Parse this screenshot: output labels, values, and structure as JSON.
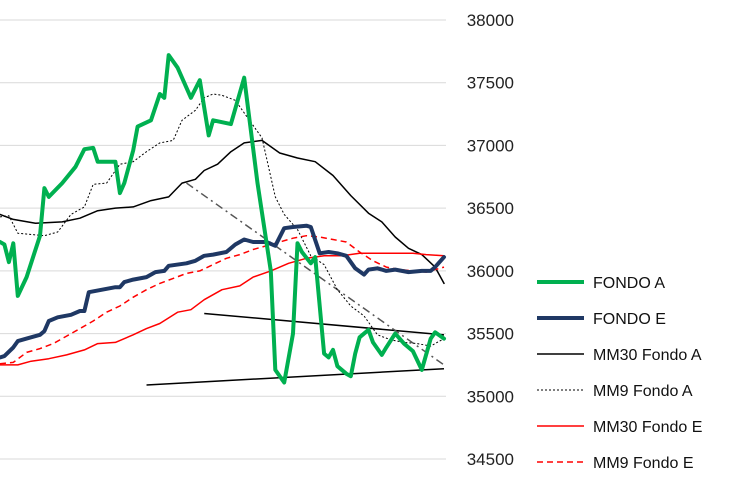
{
  "chart_data": {
    "type": "line",
    "ylim": [
      34500,
      38000
    ],
    "y_ticks": [
      "38000",
      "37500",
      "37000",
      "36500",
      "36000",
      "35500",
      "35000",
      "34500"
    ],
    "grid": true,
    "legend_position": "right",
    "x_count": 100,
    "series": [
      {
        "name": "FONDO A",
        "color": "#00b050",
        "style": "solid",
        "width": 4,
        "points": [
          [
            0,
            36230
          ],
          [
            1,
            36210
          ],
          [
            2,
            36070
          ],
          [
            3,
            36220
          ],
          [
            4,
            35800
          ],
          [
            6,
            35950
          ],
          [
            9,
            36280
          ],
          [
            10,
            36660
          ],
          [
            11,
            36590
          ],
          [
            14,
            36700
          ],
          [
            17,
            36830
          ],
          [
            19,
            36970
          ],
          [
            21,
            36980
          ],
          [
            22,
            36870
          ],
          [
            26,
            36870
          ],
          [
            27,
            36620
          ],
          [
            28,
            36700
          ],
          [
            30,
            36960
          ],
          [
            31,
            37150
          ],
          [
            34,
            37200
          ],
          [
            36,
            37410
          ],
          [
            37,
            37380
          ],
          [
            38,
            37720
          ],
          [
            40,
            37620
          ],
          [
            43,
            37380
          ],
          [
            45,
            37520
          ],
          [
            47,
            37080
          ],
          [
            48,
            37200
          ],
          [
            52,
            37170
          ],
          [
            55,
            37540
          ],
          [
            58,
            36700
          ],
          [
            61,
            36000
          ],
          [
            62,
            35210
          ],
          [
            64,
            35110
          ],
          [
            66,
            35500
          ],
          [
            67,
            36220
          ],
          [
            68,
            36150
          ],
          [
            70,
            36060
          ],
          [
            71,
            36110
          ],
          [
            73,
            35340
          ],
          [
            74,
            35310
          ],
          [
            75,
            35370
          ],
          [
            76,
            35240
          ],
          [
            78,
            35180
          ],
          [
            79,
            35160
          ],
          [
            80,
            35340
          ],
          [
            81,
            35470
          ],
          [
            83,
            35530
          ],
          [
            84,
            35430
          ],
          [
            86,
            35330
          ],
          [
            87,
            35390
          ],
          [
            89,
            35500
          ],
          [
            91,
            35420
          ],
          [
            93,
            35360
          ],
          [
            95,
            35210
          ],
          [
            97,
            35460
          ],
          [
            98,
            35510
          ],
          [
            100,
            35460
          ]
        ]
      },
      {
        "name": "FONDO E",
        "color": "#1f3864",
        "style": "solid",
        "width": 4,
        "points": [
          [
            0,
            35310
          ],
          [
            1,
            35320
          ],
          [
            3,
            35390
          ],
          [
            4,
            35440
          ],
          [
            6,
            35460
          ],
          [
            8,
            35480
          ],
          [
            9,
            35490
          ],
          [
            10,
            35520
          ],
          [
            11,
            35600
          ],
          [
            13,
            35630
          ],
          [
            16,
            35650
          ],
          [
            18,
            35680
          ],
          [
            19,
            35680
          ],
          [
            20,
            35830
          ],
          [
            23,
            35850
          ],
          [
            26,
            35870
          ],
          [
            27,
            35870
          ],
          [
            28,
            35910
          ],
          [
            30,
            35930
          ],
          [
            33,
            35950
          ],
          [
            35,
            35990
          ],
          [
            37,
            36000
          ],
          [
            38,
            36040
          ],
          [
            42,
            36060
          ],
          [
            44,
            36080
          ],
          [
            46,
            36120
          ],
          [
            48,
            36130
          ],
          [
            51,
            36150
          ],
          [
            53,
            36210
          ],
          [
            55,
            36250
          ],
          [
            57,
            36230
          ],
          [
            60,
            36230
          ],
          [
            62,
            36200
          ],
          [
            64,
            36340
          ],
          [
            66,
            36350
          ],
          [
            69,
            36360
          ],
          [
            70,
            36350
          ],
          [
            72,
            36140
          ],
          [
            74,
            36150
          ],
          [
            76,
            36140
          ],
          [
            78,
            36120
          ],
          [
            80,
            36020
          ],
          [
            82,
            35970
          ],
          [
            83,
            36010
          ],
          [
            85,
            36020
          ],
          [
            87,
            36000
          ],
          [
            89,
            36010
          ],
          [
            92,
            35990
          ],
          [
            95,
            36000
          ],
          [
            97,
            36000
          ],
          [
            98,
            36030
          ],
          [
            100,
            36110
          ]
        ]
      },
      {
        "name": "MM30 Fondo A",
        "color": "#000000",
        "style": "solid",
        "width": 1.5,
        "points": [
          [
            0,
            36450
          ],
          [
            3,
            36410
          ],
          [
            8,
            36380
          ],
          [
            14,
            36390
          ],
          [
            18,
            36420
          ],
          [
            22,
            36480
          ],
          [
            26,
            36500
          ],
          [
            30,
            36510
          ],
          [
            34,
            36560
          ],
          [
            38,
            36590
          ],
          [
            41,
            36700
          ],
          [
            44,
            36730
          ],
          [
            46,
            36800
          ],
          [
            49,
            36850
          ],
          [
            52,
            36950
          ],
          [
            55,
            37020
          ],
          [
            59,
            37040
          ],
          [
            63,
            36940
          ],
          [
            67,
            36900
          ],
          [
            71,
            36870
          ],
          [
            75,
            36760
          ],
          [
            79,
            36600
          ],
          [
            83,
            36460
          ],
          [
            86,
            36390
          ],
          [
            89,
            36270
          ],
          [
            92,
            36180
          ],
          [
            95,
            36130
          ],
          [
            98,
            36030
          ],
          [
            100,
            35900
          ]
        ]
      },
      {
        "name": "MM9 Fondo A",
        "color": "#000000",
        "style": "dotted",
        "width": 1,
        "points": [
          [
            0,
            36430
          ],
          [
            2,
            36440
          ],
          [
            4,
            36300
          ],
          [
            7,
            36290
          ],
          [
            10,
            36280
          ],
          [
            13,
            36310
          ],
          [
            16,
            36450
          ],
          [
            19,
            36510
          ],
          [
            21,
            36690
          ],
          [
            24,
            36700
          ],
          [
            27,
            36850
          ],
          [
            30,
            36870
          ],
          [
            33,
            36950
          ],
          [
            36,
            37020
          ],
          [
            39,
            37040
          ],
          [
            41,
            37200
          ],
          [
            44,
            37280
          ],
          [
            46,
            37380
          ],
          [
            48,
            37410
          ],
          [
            50,
            37400
          ],
          [
            53,
            37360
          ],
          [
            56,
            37210
          ],
          [
            59,
            37060
          ],
          [
            62,
            36590
          ],
          [
            64,
            36450
          ],
          [
            67,
            36330
          ],
          [
            70,
            36120
          ],
          [
            73,
            36050
          ],
          [
            76,
            35850
          ],
          [
            79,
            35720
          ],
          [
            82,
            35640
          ],
          [
            85,
            35490
          ],
          [
            88,
            35450
          ],
          [
            91,
            35430
          ],
          [
            94,
            35420
          ],
          [
            97,
            35400
          ],
          [
            100,
            35460
          ]
        ]
      },
      {
        "name": "MM30 Fondo E",
        "color": "#ff0000",
        "style": "solid",
        "width": 1.5,
        "points": [
          [
            0,
            35250
          ],
          [
            4,
            35250
          ],
          [
            7,
            35280
          ],
          [
            11,
            35300
          ],
          [
            15,
            35330
          ],
          [
            19,
            35370
          ],
          [
            22,
            35420
          ],
          [
            26,
            35430
          ],
          [
            30,
            35490
          ],
          [
            33,
            35540
          ],
          [
            36,
            35580
          ],
          [
            40,
            35670
          ],
          [
            43,
            35690
          ],
          [
            46,
            35770
          ],
          [
            50,
            35850
          ],
          [
            54,
            35880
          ],
          [
            57,
            35950
          ],
          [
            61,
            36000
          ],
          [
            65,
            36060
          ],
          [
            69,
            36100
          ],
          [
            73,
            36120
          ],
          [
            77,
            36120
          ],
          [
            81,
            36140
          ],
          [
            85,
            36140
          ],
          [
            89,
            36140
          ],
          [
            93,
            36140
          ],
          [
            96,
            36130
          ],
          [
            100,
            36120
          ]
        ]
      },
      {
        "name": "MM9 Fondo E",
        "color": "#ff0000",
        "style": "dashed",
        "width": 1.5,
        "points": [
          [
            0,
            35260
          ],
          [
            3,
            35270
          ],
          [
            6,
            35350
          ],
          [
            9,
            35380
          ],
          [
            12,
            35420
          ],
          [
            15,
            35480
          ],
          [
            18,
            35540
          ],
          [
            21,
            35600
          ],
          [
            24,
            35670
          ],
          [
            27,
            35720
          ],
          [
            30,
            35790
          ],
          [
            33,
            35850
          ],
          [
            36,
            35900
          ],
          [
            39,
            35940
          ],
          [
            42,
            35980
          ],
          [
            45,
            36000
          ],
          [
            48,
            36050
          ],
          [
            51,
            36100
          ],
          [
            54,
            36130
          ],
          [
            57,
            36170
          ],
          [
            60,
            36200
          ],
          [
            63,
            36230
          ],
          [
            66,
            36260
          ],
          [
            69,
            36280
          ],
          [
            72,
            36270
          ],
          [
            75,
            36250
          ],
          [
            78,
            36230
          ],
          [
            81,
            36150
          ],
          [
            84,
            36080
          ],
          [
            87,
            36030
          ],
          [
            90,
            36010
          ],
          [
            93,
            36000
          ],
          [
            96,
            35990
          ],
          [
            100,
            36030
          ]
        ]
      }
    ],
    "annotations": [
      {
        "kind": "trendline",
        "style": "solid",
        "color": "#000000",
        "from": [
          33,
          35090
        ],
        "to": [
          100,
          35220
        ]
      },
      {
        "kind": "trendline",
        "style": "solid",
        "color": "#000000",
        "from": [
          46,
          35660
        ],
        "to": [
          100,
          35490
        ]
      },
      {
        "kind": "trendline",
        "style": "dash-dot",
        "color": "#555555",
        "from": [
          42,
          36700
        ],
        "to": [
          100,
          35250
        ]
      }
    ]
  }
}
